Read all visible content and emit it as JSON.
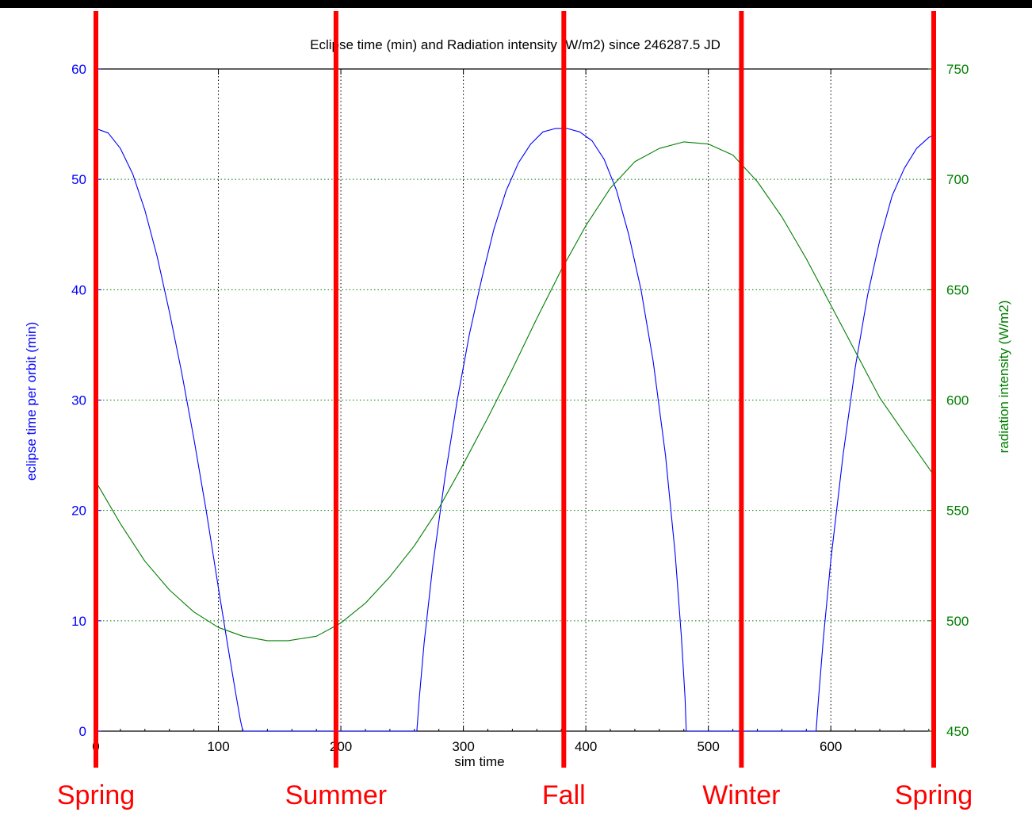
{
  "chart_data": {
    "type": "line",
    "title": "Eclipse time (min) and Radiation intensity (W/m2) since 246287.5 JD",
    "xlabel": "sim time",
    "ylabel_left": "eclipse time per orbit (min)",
    "ylabel_right": "radiation intensity (W/m2)",
    "xlim": [
      0,
      684
    ],
    "xticks": [
      0,
      100,
      200,
      300,
      400,
      500,
      600
    ],
    "ylim_left": [
      0,
      60
    ],
    "yticks_left": [
      0,
      10,
      20,
      30,
      40,
      50,
      60
    ],
    "ylim_right": [
      450,
      750
    ],
    "yticks_right": [
      450,
      500,
      550,
      600,
      650,
      700,
      750
    ],
    "grid": true,
    "colors": {
      "eclipse": "#0000ff",
      "radiation": "#007f00",
      "season_markers": "#ff0000",
      "grid": "#000000"
    },
    "series": [
      {
        "axis": "left",
        "color": "#0000ff",
        "x": [
          0,
          10,
          20,
          30,
          40,
          50,
          60,
          70,
          80,
          90,
          100,
          108,
          114,
          118,
          120,
          262,
          264,
          268,
          275,
          285,
          295,
          305,
          315,
          325,
          335,
          345,
          355,
          365,
          375,
          385,
          395,
          405,
          415,
          425,
          435,
          445,
          455,
          465,
          473,
          478,
          481,
          482,
          588,
          590,
          594,
          600,
          610,
          620,
          630,
          640,
          650,
          660,
          670,
          680,
          684
        ],
        "values": [
          54.6,
          54.2,
          52.8,
          50.5,
          47.2,
          43.0,
          38.0,
          32.5,
          26.5,
          20.0,
          13.0,
          7.5,
          3.5,
          1.0,
          0,
          0,
          3.0,
          8.0,
          15.0,
          23.0,
          30.0,
          36.0,
          41.0,
          45.5,
          49.0,
          51.5,
          53.2,
          54.3,
          54.6,
          54.6,
          54.3,
          53.5,
          51.8,
          49.0,
          45.0,
          40.0,
          33.5,
          25.0,
          16.0,
          8.5,
          3.0,
          0,
          0,
          3.0,
          8.5,
          15.5,
          25.0,
          33.0,
          39.5,
          44.5,
          48.5,
          51.0,
          52.8,
          53.8,
          54.0
        ]
      },
      {
        "axis": "right",
        "color": "#007f00",
        "x": [
          0,
          20,
          40,
          60,
          80,
          100,
          120,
          140,
          157,
          180,
          200,
          220,
          240,
          260,
          280,
          300,
          320,
          340,
          360,
          380,
          400,
          420,
          440,
          460,
          480,
          500,
          520,
          540,
          560,
          580,
          600,
          620,
          640,
          660,
          684
        ],
        "values": [
          563,
          544,
          527,
          514,
          504,
          497,
          493,
          491,
          491,
          493,
          499,
          508,
          520,
          534,
          551,
          571,
          592,
          614,
          637,
          659,
          679,
          696,
          708,
          714,
          717,
          716,
          711,
          699,
          683,
          664,
          643,
          622,
          601,
          585,
          566
        ]
      }
    ],
    "annotations": {
      "season_lines_x": [
        0,
        196,
        382,
        527,
        684
      ],
      "season_labels": [
        "Spring",
        "Summer",
        "Fall",
        "Winter",
        "Spring"
      ]
    }
  }
}
